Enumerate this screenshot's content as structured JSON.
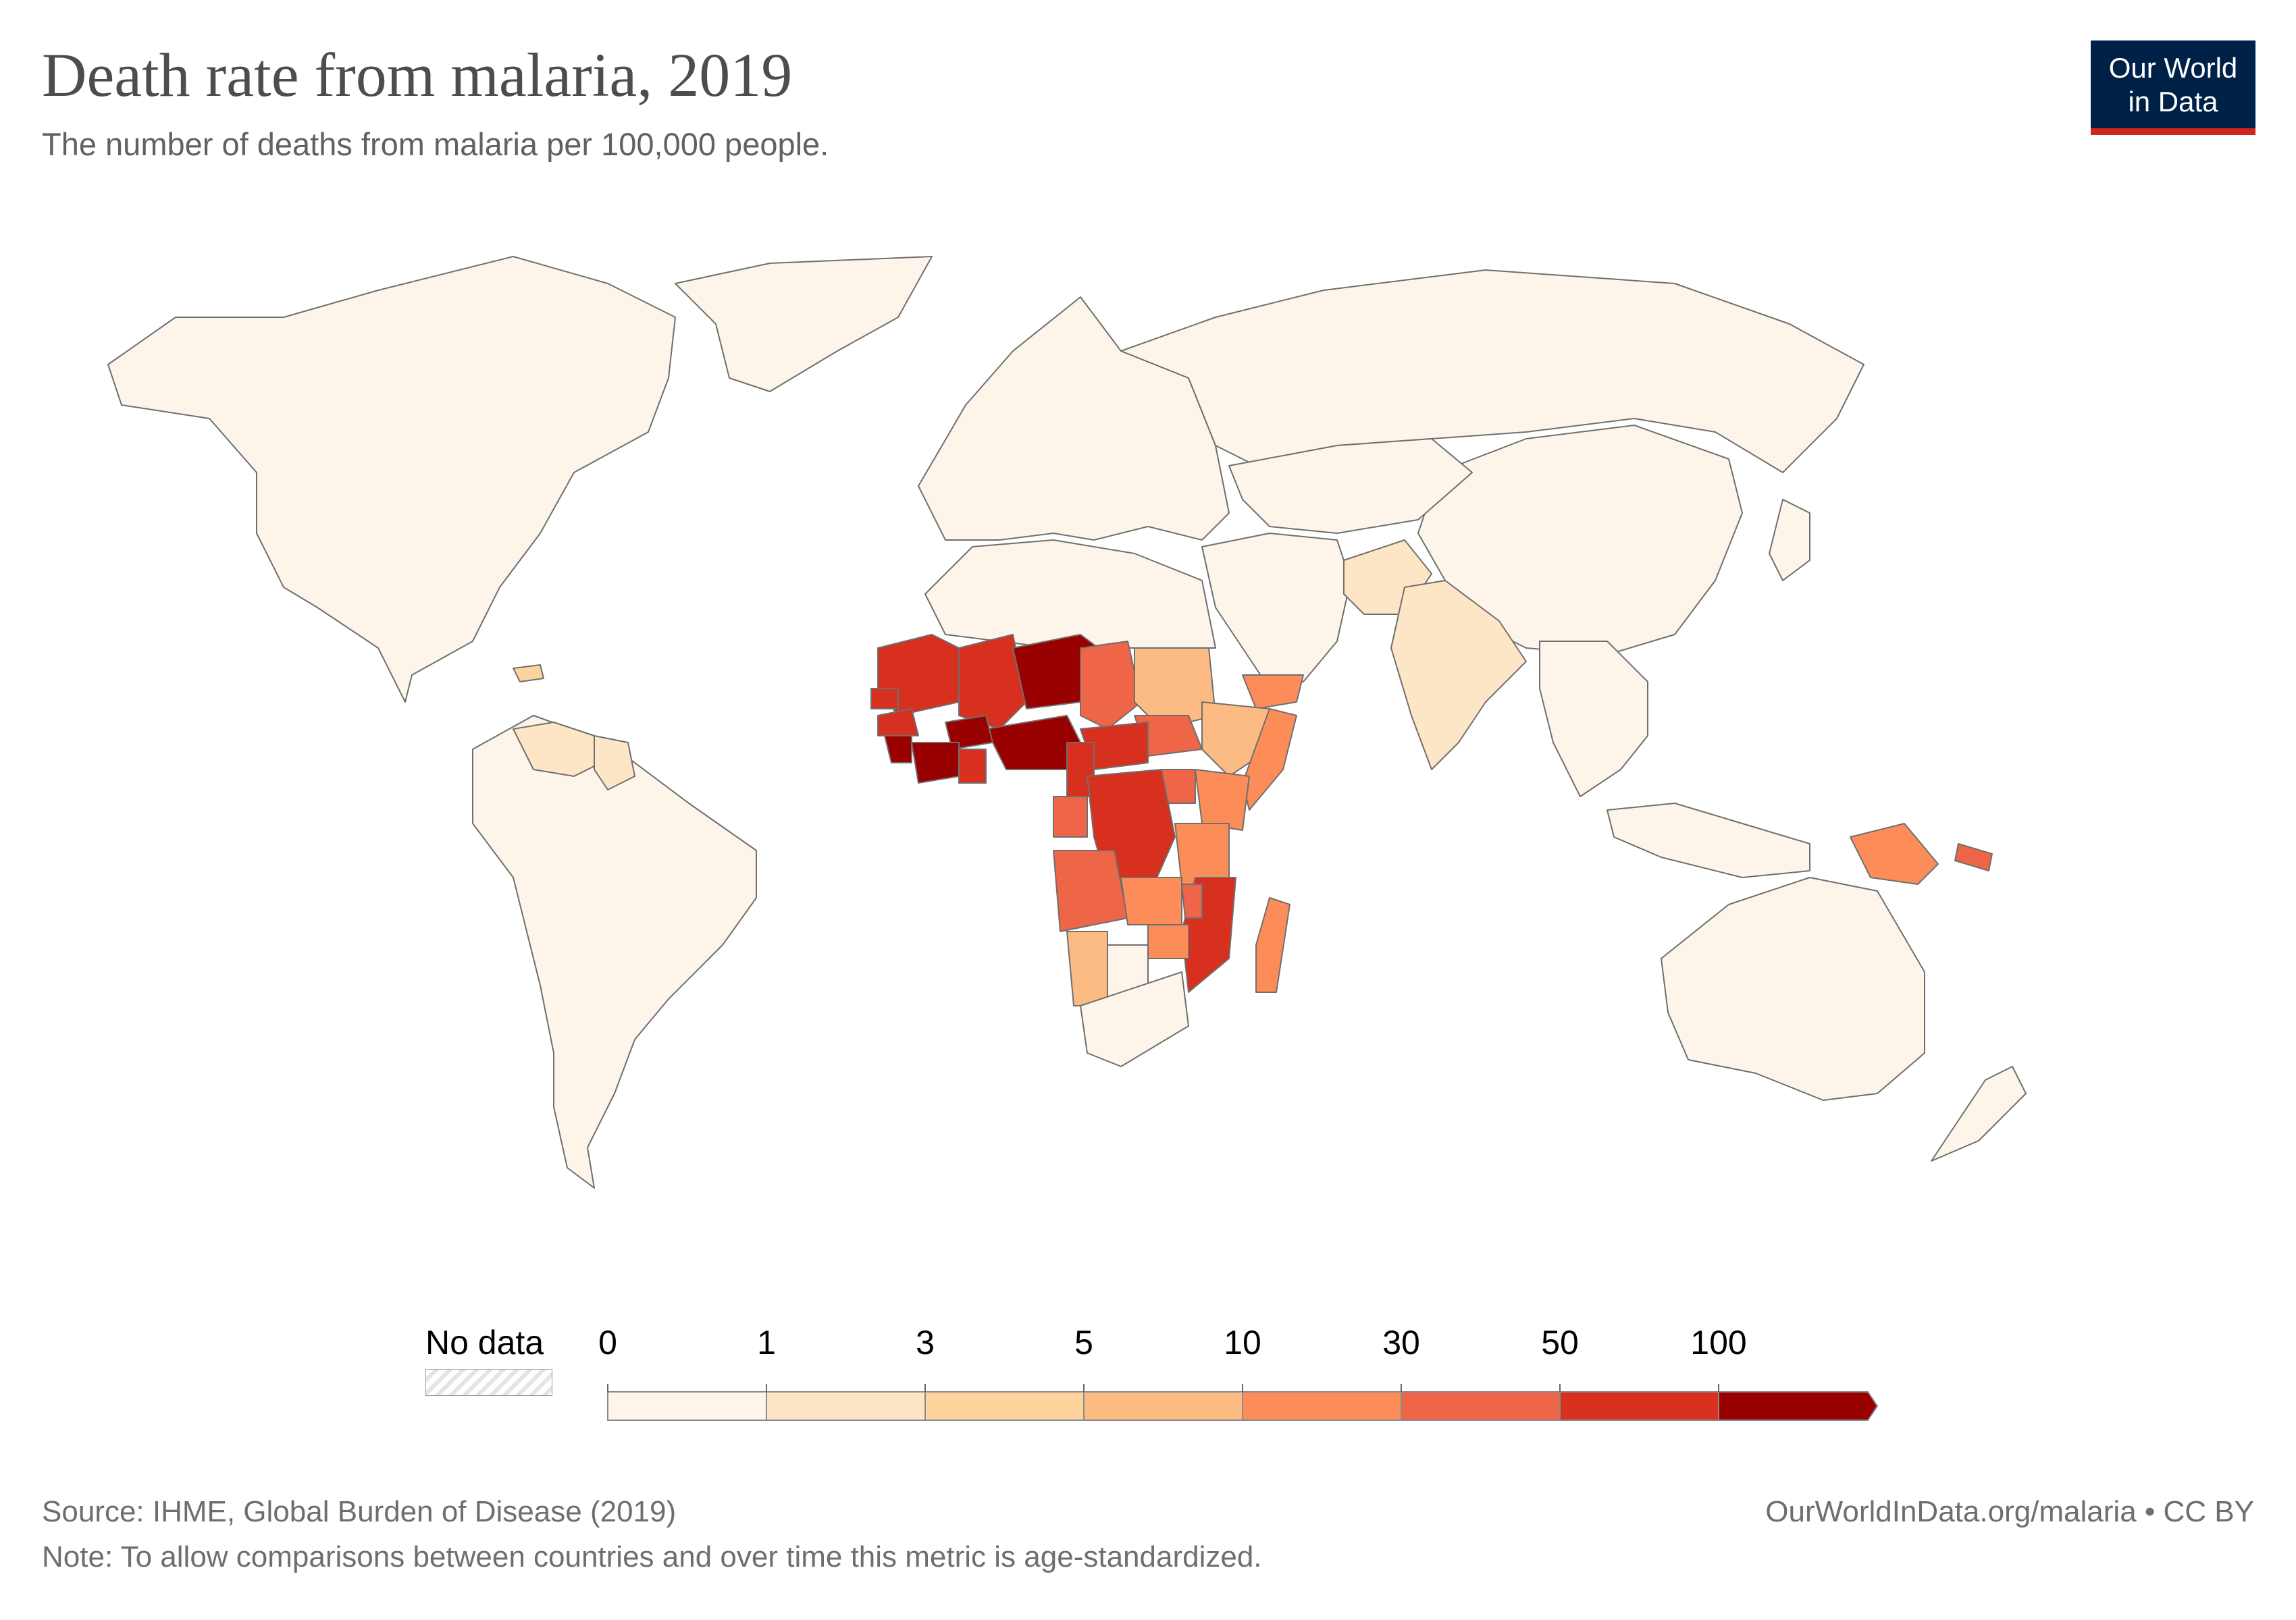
{
  "header": {
    "title": "Death rate from malaria, 2019",
    "subtitle": "The number of deaths from malaria per 100,000 people."
  },
  "logo": {
    "line1": "Our World",
    "line2": "in Data",
    "background": "#002147",
    "accent": "#ce261e"
  },
  "legend": {
    "no_data_label": "No data",
    "ticks": [
      "0",
      "1",
      "3",
      "5",
      "10",
      "30",
      "50",
      "100"
    ],
    "colors": [
      "#fdf5ea",
      "#fde6c6",
      "#fdd49e",
      "#fdbb84",
      "#fc8d59",
      "#ef6548",
      "#d7301f",
      "#990000"
    ]
  },
  "footer": {
    "source": "Source: IHME, Global Burden of Disease (2019)",
    "note": "Note: To allow comparisons between countries and over time this metric is age-standardized.",
    "url": "OurWorldInData.org/malaria • CC BY"
  },
  "map_data": {
    "metric": "deaths from malaria per 100,000 people",
    "year": "2019",
    "regions": [
      {
        "name": "North America",
        "bin": 0
      },
      {
        "name": "South America",
        "bin": 0
      },
      {
        "name": "Venezuela",
        "bin": 1
      },
      {
        "name": "Guyana",
        "bin": 1
      },
      {
        "name": "Haiti",
        "bin": 2
      },
      {
        "name": "Europe",
        "bin": 0
      },
      {
        "name": "Russia",
        "bin": 0
      },
      {
        "name": "Greenland",
        "bin": 0
      },
      {
        "name": "China",
        "bin": 0
      },
      {
        "name": "Central Asia",
        "bin": 0
      },
      {
        "name": "Middle East",
        "bin": 0
      },
      {
        "name": "Yemen",
        "bin": 4
      },
      {
        "name": "Pakistan",
        "bin": 1
      },
      {
        "name": "India",
        "bin": 1
      },
      {
        "name": "Southeast Asia",
        "bin": 0
      },
      {
        "name": "Indonesia",
        "bin": 0
      },
      {
        "name": "Papua New Guinea",
        "bin": 4
      },
      {
        "name": "Solomon Islands",
        "bin": 5
      },
      {
        "name": "Australia",
        "bin": 0
      },
      {
        "name": "New Zealand",
        "bin": 0
      },
      {
        "name": "Japan",
        "bin": 0
      },
      {
        "name": "North Africa",
        "bin": 0
      },
      {
        "name": "Mauritania",
        "bin": 6
      },
      {
        "name": "Mali",
        "bin": 6
      },
      {
        "name": "Niger",
        "bin": 7
      },
      {
        "name": "Nigeria",
        "bin": 7
      },
      {
        "name": "Burkina Faso",
        "bin": 7
      },
      {
        "name": "Cote d'Ivoire",
        "bin": 7
      },
      {
        "name": "Sierra Leone",
        "bin": 7
      },
      {
        "name": "Guinea",
        "bin": 6
      },
      {
        "name": "Senegal",
        "bin": 6
      },
      {
        "name": "Ghana",
        "bin": 6
      },
      {
        "name": "Chad",
        "bin": 5
      },
      {
        "name": "Sudan",
        "bin": 3
      },
      {
        "name": "South Sudan",
        "bin": 5
      },
      {
        "name": "Ethiopia",
        "bin": 3
      },
      {
        "name": "Somalia",
        "bin": 4
      },
      {
        "name": "Central African Republic",
        "bin": 6
      },
      {
        "name": "Cameroon",
        "bin": 6
      },
      {
        "name": "Gabon",
        "bin": 5
      },
      {
        "name": "DR Congo",
        "bin": 6
      },
      {
        "name": "Uganda",
        "bin": 5
      },
      {
        "name": "Kenya",
        "bin": 4
      },
      {
        "name": "Tanzania",
        "bin": 4
      },
      {
        "name": "Angola",
        "bin": 5
      },
      {
        "name": "Zambia",
        "bin": 4
      },
      {
        "name": "Mozambique",
        "bin": 6
      },
      {
        "name": "Malawi",
        "bin": 5
      },
      {
        "name": "Zimbabwe",
        "bin": 4
      },
      {
        "name": "Namibia",
        "bin": 3
      },
      {
        "name": "Botswana",
        "bin": 0
      },
      {
        "name": "South Africa",
        "bin": 0
      },
      {
        "name": "Madagascar",
        "bin": 4
      }
    ]
  }
}
